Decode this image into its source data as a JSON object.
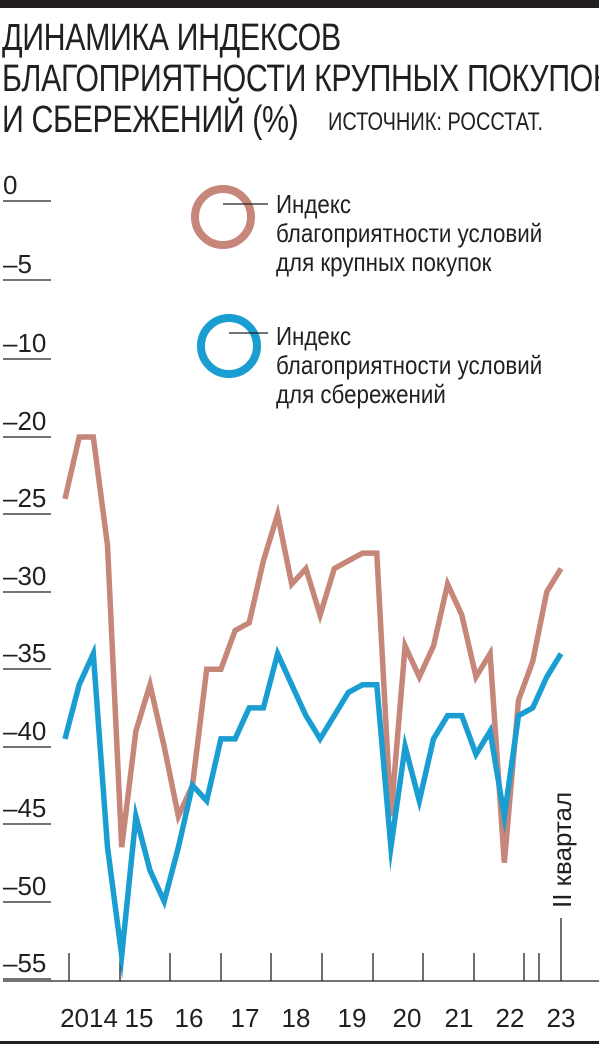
{
  "title_lines": [
    "ДИНАМИКА ИНДЕКСОВ",
    "БЛАГОПРИЯТНОСТИ КРУПНЫХ ПОКУПОК",
    "И СБЕРЕЖЕНИЙ (%)"
  ],
  "source": "ИСТОЧНИК: РОССТАТ.",
  "chart_data": {
    "type": "line",
    "title": "ДИНАМИКА ИНДЕКСОВ БЛАГОПРИЯТНОСТИ КРУПНЫХ ПОКУПОК И СБЕРЕЖЕНИЙ (%)",
    "y_ticks": [
      "0",
      "–5",
      "–10",
      "–20",
      "–25",
      "–30",
      "–35",
      "–40",
      "–45",
      "–50",
      "–55"
    ],
    "x_labels": [
      "2014",
      "15",
      "16",
      "17",
      "18",
      "19",
      "20",
      "21",
      "22",
      "23"
    ],
    "annotation": "II квартал",
    "legend_position": "top-right",
    "series": [
      {
        "name": "Индекс благоприятности условий для крупных покупок",
        "legend_lines": [
          "Индекс",
          "благоприятности условий",
          "для крупных покупок"
        ],
        "color": "#c6867a",
        "values": [
          -24,
          -20,
          -20,
          -27,
          -46.5,
          -39,
          -36,
          -40,
          -44.5,
          -42.5,
          -35,
          -35,
          -32.5,
          -32,
          -28,
          -25,
          -29.5,
          -28.5,
          -31.5,
          -28.5,
          -28,
          -27.5,
          -27.5,
          -44.5,
          -33.5,
          -35.5,
          -33.5,
          -29.5,
          -31.5,
          -35.5,
          -34,
          -47.5,
          -37,
          -34.5,
          -30,
          -28.5
        ]
      },
      {
        "name": "Индекс благоприятности условий для сбережений",
        "legend_lines": [
          "Индекс",
          "благоприятности условий",
          "для сбережений"
        ],
        "color": "#1a9ed1",
        "values": [
          -39.5,
          -36,
          -34,
          -46.5,
          -53.5,
          -44.5,
          -48,
          -50,
          -46.5,
          -42.5,
          -43.5,
          -39.5,
          -39.5,
          -37.5,
          -37.5,
          -34,
          -36,
          -38,
          -39.5,
          -38,
          -36.5,
          -36,
          -36,
          -46.5,
          -40,
          -43.5,
          -39.5,
          -38,
          -38,
          -40.5,
          -39,
          -44.5,
          -38,
          -37.5,
          -35.5,
          -34
        ]
      }
    ],
    "grid": false
  }
}
